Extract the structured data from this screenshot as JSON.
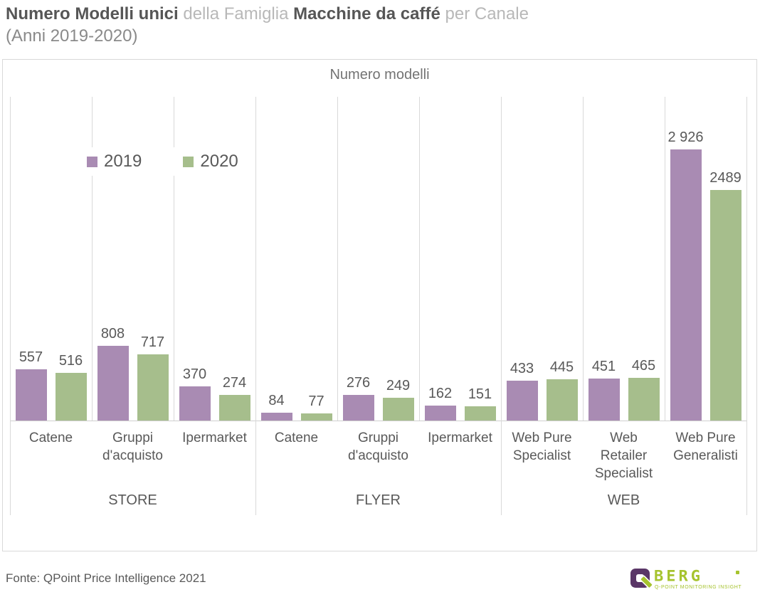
{
  "header": {
    "title_bold_1": "Numero Modelli unici",
    "title_light_1": " della Famiglia ",
    "title_bold_2": "Macchine da caffé",
    "title_light_2": " per Canale",
    "title_line_2": "(Anni 2019-2020)"
  },
  "chart": {
    "title": "Numero modelli",
    "legend": [
      {
        "label": "2019",
        "color": "#a98bb3"
      },
      {
        "label": "2020",
        "color": "#a6be8c"
      }
    ],
    "chart_data": {
      "type": "bar",
      "title": "Numero modelli",
      "categories": [
        "Catene",
        "Gruppi d'acquisto",
        "Ipermarket",
        "Catene",
        "Gruppi d'acquisto",
        "Ipermarket",
        "Web Pure Specialist",
        "Web Retailer Specialist",
        "Web Pure Generalisti"
      ],
      "groups": [
        {
          "label": "STORE",
          "start": 0,
          "count": 3
        },
        {
          "label": "FLYER",
          "start": 3,
          "count": 3
        },
        {
          "label": "WEB",
          "start": 6,
          "count": 3
        }
      ],
      "series": [
        {
          "name": "2019",
          "color": "#a98bb3",
          "values": [
            557,
            808,
            370,
            84,
            276,
            162,
            433,
            451,
            2926
          ],
          "labels": [
            "557",
            "808",
            "370",
            "84",
            "276",
            "162",
            "433",
            "451",
            "2 926"
          ]
        },
        {
          "name": "2020",
          "color": "#a6be8c",
          "values": [
            516,
            717,
            274,
            77,
            249,
            151,
            445,
            465,
            2489
          ],
          "labels": [
            "516",
            "717",
            "274",
            "77",
            "249",
            "151",
            "445",
            "465",
            "2489"
          ]
        }
      ],
      "ylim": [
        0,
        2926
      ],
      "xlabel": "",
      "ylabel": "",
      "grid": "vertical-category-separators-only",
      "legend_position": "inside-top-left"
    },
    "colors": {
      "gridline": "#d9d9d9",
      "axis": "#cfcfcf",
      "text": "#595959"
    }
  },
  "footer": {
    "source": "Fonte: QPoint Price Intelligence 2021"
  },
  "logo": {
    "wordmark": "BERG",
    "tagline": "Q-POINT MONITORING INSIGHT"
  }
}
